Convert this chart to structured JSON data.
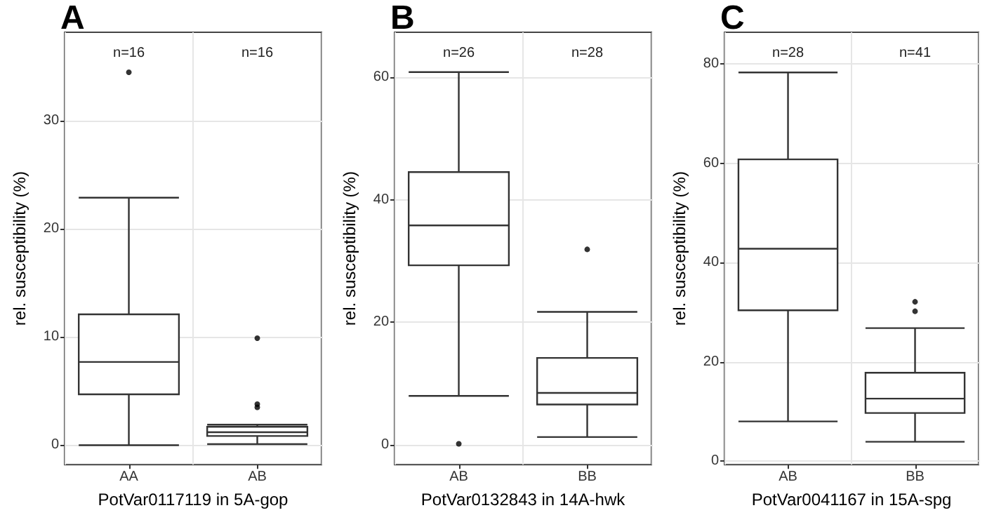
{
  "chart_data": [
    {
      "type": "box",
      "title": "A",
      "xlabel": "PotVar0117119 in 5A-gop",
      "ylabel": "rel. susceptibility (%)",
      "categories": [
        "AA",
        "AB"
      ],
      "color": "#333333",
      "boxes": [
        {
          "low": 0,
          "q1": 4.7,
          "median": 7.7,
          "q3": 12.1,
          "high": 22.9,
          "outliers": [
            34.5
          ]
        },
        {
          "low": 0.1,
          "q1": 0.85,
          "median": 1.2,
          "q3": 1.7,
          "high": 1.9,
          "outliers": [
            3.5,
            3.8,
            9.9
          ]
        }
      ],
      "ylim": [
        -1.8,
        38.2
      ],
      "yticks": [
        0,
        10,
        20,
        30
      ],
      "grid": true,
      "annotations": [
        "n=16",
        "n=16"
      ]
    },
    {
      "type": "box",
      "title": "B",
      "xlabel": "PotVar0132843 in 14A-hwk",
      "ylabel": "rel. susceptibility (%)",
      "categories": [
        "AB",
        "BB"
      ],
      "color": "#333333",
      "boxes": [
        {
          "low": 8,
          "q1": 29.3,
          "median": 35.8,
          "q3": 44.5,
          "high": 60.8,
          "outliers": [
            0.2
          ]
        },
        {
          "low": 1.3,
          "q1": 6.6,
          "median": 8.5,
          "q3": 14.2,
          "high": 21.7,
          "outliers": [
            31.9
          ]
        }
      ],
      "ylim": [
        -3.2,
        67.3
      ],
      "yticks": [
        0,
        20,
        40,
        60
      ],
      "grid": true,
      "annotations": [
        "n=26",
        "n=28"
      ]
    },
    {
      "type": "box",
      "title": "C",
      "xlabel": "PotVar0041167 in 15A-spg",
      "ylabel": "rel. susceptibility (%)",
      "categories": [
        "AB",
        "BB"
      ],
      "color": "#333333",
      "boxes": [
        {
          "low": 8,
          "q1": 30.4,
          "median": 42.8,
          "q3": 60.8,
          "high": 78.3
        },
        {
          "low": 3.9,
          "q1": 9.7,
          "median": 12.6,
          "q3": 17.8,
          "high": 26.8,
          "outliers": [
            30.2,
            32.1
          ]
        }
      ],
      "ylim": [
        -0.7,
        86.4
      ],
      "yticks": [
        0,
        20,
        40,
        60,
        80
      ],
      "grid": true,
      "annotations": [
        "n=28",
        "n=41"
      ]
    }
  ]
}
